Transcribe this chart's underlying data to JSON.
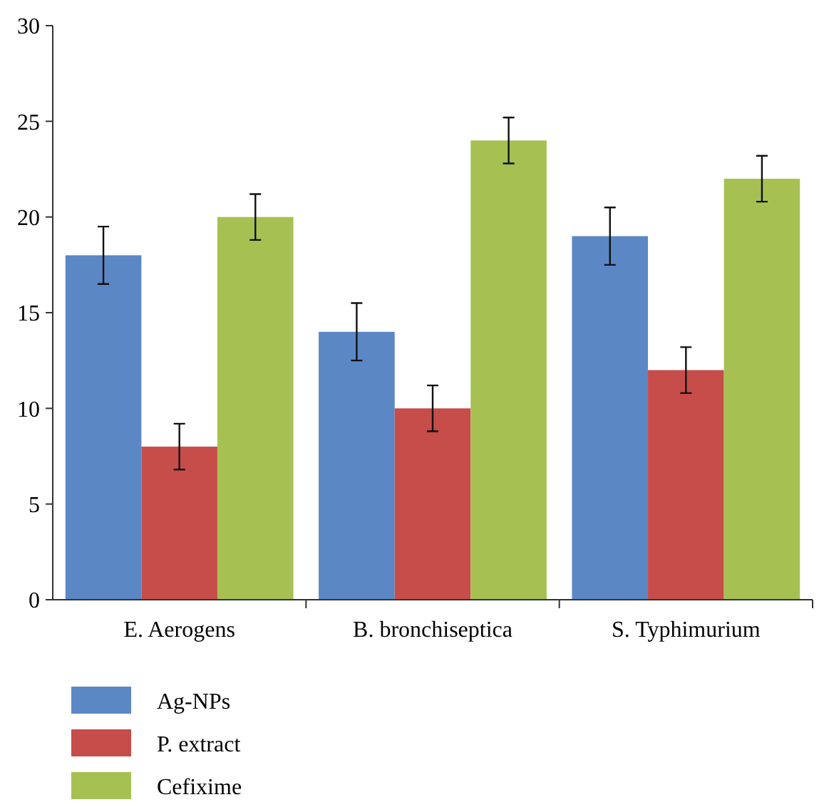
{
  "chart_data": {
    "type": "bar",
    "categories": [
      "E. Aerogens",
      "B. bronchiseptica",
      "S. Typhimurium"
    ],
    "series": [
      {
        "name": "Ag-NPs",
        "color": "#5b87c5",
        "values": [
          18,
          14,
          19
        ],
        "errors": [
          1.5,
          1.5,
          1.5
        ]
      },
      {
        "name": "P. extract",
        "color": "#c64d4a",
        "values": [
          8,
          10,
          12
        ],
        "errors": [
          1.2,
          1.2,
          1.2
        ]
      },
      {
        "name": "Cefixime",
        "color": "#a6c152",
        "values": [
          20,
          24,
          22
        ],
        "errors": [
          1.2,
          1.2,
          1.2
        ]
      }
    ],
    "ylim": [
      0,
      30
    ],
    "yticks": [
      0,
      5,
      10,
      15,
      20,
      25,
      30
    ],
    "legend": "bottom left"
  }
}
